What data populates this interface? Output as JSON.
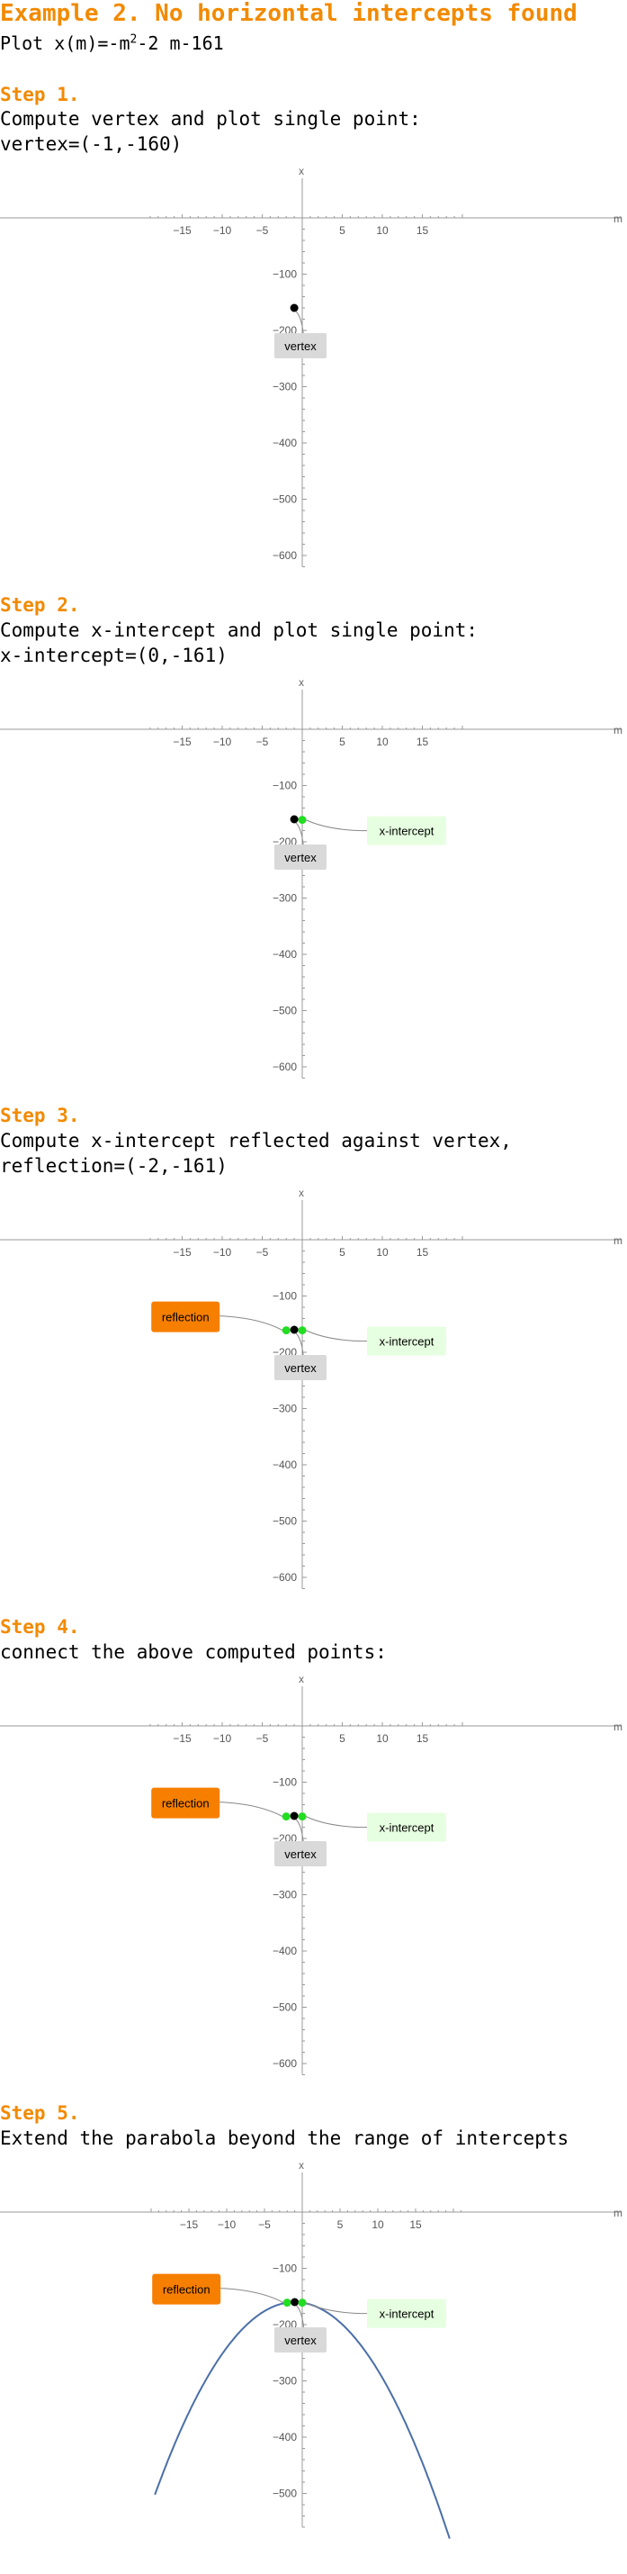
{
  "header": {
    "title": "Example 2. No horizontal intercepts found",
    "subtitle_prefix": "Plot x(m)=-m",
    "subtitle_exp": "2",
    "subtitle_suffix": "-2 m-161"
  },
  "steps": [
    {
      "label": "Step 1.",
      "desc": "Compute vertex and plot single point:",
      "result": "vertex=(-1,-160)"
    },
    {
      "label": "Step 2.",
      "desc": "Compute x-intercept and plot single point:",
      "result": "x-intercept=(0,-161)"
    },
    {
      "label": "Step 3.",
      "desc": "Compute x-intercept reflected against vertex,",
      "result": "reflection=(-2,-161)"
    },
    {
      "label": "Step 4.",
      "desc": "connect the above computed points:",
      "result": ""
    },
    {
      "label": "Step 5.",
      "desc": "Extend the parabola beyond the range of intercepts",
      "result": ""
    }
  ],
  "labels": {
    "vertex": "vertex",
    "xint": "x-intercept",
    "reflection": "reflection"
  },
  "colors": {
    "heading": "#f28a00",
    "point_vertex": "#000000",
    "point_green": "#22dd22",
    "reflection_bg": "#f77f00",
    "xint_bg": "#e6ffe0",
    "vertex_bg": "#d9d9d9",
    "curve": "#4a6fa8"
  },
  "chart_data": [
    {
      "type": "scatter",
      "xlabel": "m",
      "ylabel": "x",
      "xlim": [
        -19,
        20
      ],
      "ylim": [
        -620,
        75
      ],
      "xticks": [
        -15,
        -10,
        -5,
        5,
        10,
        15
      ],
      "yticks": [
        -100,
        -200,
        -300,
        -400,
        -500,
        -600
      ],
      "points": [
        {
          "x": -1,
          "y": -160,
          "label": "vertex",
          "color": "#000000"
        }
      ],
      "curve": null
    },
    {
      "type": "scatter",
      "xlabel": "m",
      "ylabel": "x",
      "xlim": [
        -19,
        20
      ],
      "ylim": [
        -620,
        75
      ],
      "xticks": [
        -15,
        -10,
        -5,
        5,
        10,
        15
      ],
      "yticks": [
        -100,
        -200,
        -300,
        -400,
        -500,
        -600
      ],
      "points": [
        {
          "x": -1,
          "y": -160,
          "label": "vertex",
          "color": "#000000"
        },
        {
          "x": 0,
          "y": -161,
          "label": "x-intercept",
          "color": "#22dd22"
        }
      ],
      "curve": null
    },
    {
      "type": "scatter",
      "xlabel": "m",
      "ylabel": "x",
      "xlim": [
        -19,
        20
      ],
      "ylim": [
        -620,
        75
      ],
      "xticks": [
        -15,
        -10,
        -5,
        5,
        10,
        15
      ],
      "yticks": [
        -100,
        -200,
        -300,
        -400,
        -500,
        -600
      ],
      "points": [
        {
          "x": -2,
          "y": -161,
          "label": "reflection",
          "color": "#22dd22"
        },
        {
          "x": -1,
          "y": -160,
          "label": "vertex",
          "color": "#000000"
        },
        {
          "x": 0,
          "y": -161,
          "label": "x-intercept",
          "color": "#22dd22"
        }
      ],
      "curve": null
    },
    {
      "type": "scatter",
      "xlabel": "m",
      "ylabel": "x",
      "xlim": [
        -19,
        20
      ],
      "ylim": [
        -620,
        75
      ],
      "xticks": [
        -15,
        -10,
        -5,
        5,
        10,
        15
      ],
      "yticks": [
        -100,
        -200,
        -300,
        -400,
        -500,
        -600
      ],
      "points": [
        {
          "x": -2,
          "y": -161,
          "label": "reflection",
          "color": "#22dd22"
        },
        {
          "x": -1,
          "y": -160,
          "label": "vertex",
          "color": "#000000"
        },
        {
          "x": 0,
          "y": -161,
          "label": "x-intercept",
          "color": "#22dd22"
        }
      ],
      "curve": null
    },
    {
      "type": "line",
      "xlabel": "m",
      "ylabel": "x",
      "xlim": [
        -20,
        21
      ],
      "ylim": [
        -560,
        75
      ],
      "xticks": [
        -15,
        -10,
        -5,
        5,
        10,
        15
      ],
      "yticks": [
        -100,
        -200,
        -300,
        -400,
        -500
      ],
      "points": [
        {
          "x": -2,
          "y": -161,
          "label": "reflection",
          "color": "#22dd22"
        },
        {
          "x": -1,
          "y": -160,
          "label": "vertex",
          "color": "#000000"
        },
        {
          "x": 0,
          "y": -161,
          "label": "x-intercept",
          "color": "#22dd22"
        }
      ],
      "curve": {
        "a": -1,
        "b": -2,
        "c": -161,
        "from": -19.5,
        "to": 19.5
      }
    }
  ]
}
